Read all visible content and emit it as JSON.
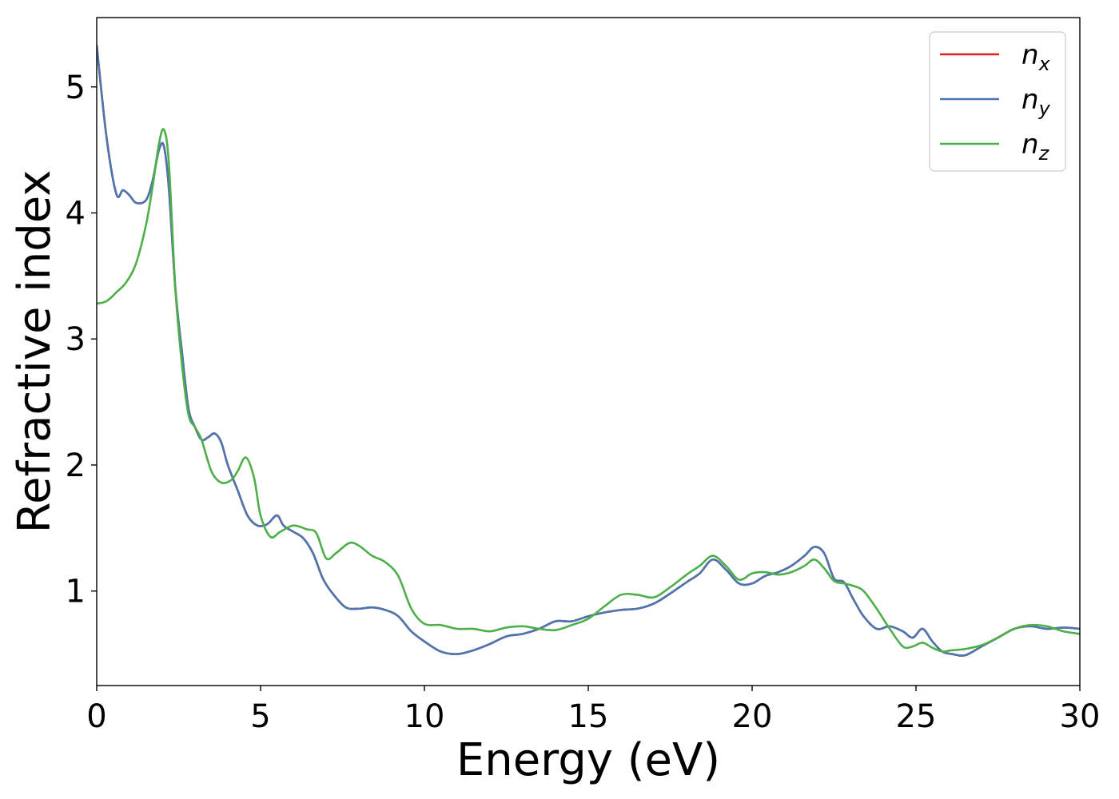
{
  "chart_data": {
    "type": "line",
    "xlabel": "Energy (eV)",
    "ylabel": "Refractive index",
    "xlim": [
      0,
      30
    ],
    "ylim": [
      0.25,
      5.55
    ],
    "xticks": [
      0,
      5,
      10,
      15,
      20,
      25,
      30
    ],
    "yticks": [
      1,
      2,
      3,
      4,
      5
    ],
    "grid": false,
    "legend_position": "top-right",
    "series": [
      {
        "name": "n_x",
        "legend_base": "n",
        "legend_sub": "x",
        "color": "#e41a1c",
        "x": [
          0,
          0.3,
          0.6,
          0.8,
          1.0,
          1.2,
          1.5,
          1.7,
          1.9,
          2.05,
          2.2,
          2.4,
          2.6,
          2.8,
          3.0,
          3.2,
          3.4,
          3.6,
          3.8,
          4.0,
          4.3,
          4.6,
          4.9,
          5.2,
          5.5,
          5.7,
          6.0,
          6.3,
          6.6,
          6.9,
          7.2,
          7.6,
          8.0,
          8.4,
          8.8,
          9.2,
          9.6,
          10.0,
          10.5,
          11.0,
          11.5,
          12.0,
          12.5,
          13.0,
          13.5,
          14.0,
          14.5,
          15.0,
          15.5,
          16.0,
          16.5,
          17.0,
          17.5,
          18.0,
          18.4,
          18.8,
          19.2,
          19.6,
          20.0,
          20.4,
          20.8,
          21.2,
          21.6,
          21.9,
          22.2,
          22.5,
          22.8,
          23.1,
          23.4,
          23.8,
          24.2,
          24.6,
          24.9,
          25.2,
          25.5,
          25.8,
          26.1,
          26.5,
          27.0,
          27.5,
          28.0,
          28.5,
          29.0,
          29.5,
          30.0
        ],
        "y": [
          5.33,
          4.6,
          4.15,
          4.18,
          4.14,
          4.08,
          4.1,
          4.25,
          4.5,
          4.53,
          4.2,
          3.4,
          2.9,
          2.45,
          2.3,
          2.2,
          2.22,
          2.25,
          2.18,
          2.0,
          1.8,
          1.6,
          1.52,
          1.53,
          1.6,
          1.52,
          1.47,
          1.42,
          1.3,
          1.1,
          0.98,
          0.87,
          0.86,
          0.87,
          0.85,
          0.8,
          0.68,
          0.6,
          0.52,
          0.5,
          0.53,
          0.58,
          0.64,
          0.66,
          0.7,
          0.76,
          0.76,
          0.8,
          0.83,
          0.85,
          0.86,
          0.9,
          0.98,
          1.07,
          1.14,
          1.25,
          1.17,
          1.06,
          1.06,
          1.12,
          1.15,
          1.2,
          1.28,
          1.35,
          1.3,
          1.1,
          1.07,
          0.93,
          0.8,
          0.7,
          0.72,
          0.68,
          0.63,
          0.7,
          0.6,
          0.52,
          0.5,
          0.49,
          0.56,
          0.63,
          0.7,
          0.72,
          0.7,
          0.71,
          0.7
        ]
      },
      {
        "name": "n_y",
        "legend_base": "n",
        "legend_sub": "y",
        "color": "#4a77b0",
        "x": [
          0,
          0.3,
          0.6,
          0.8,
          1.0,
          1.2,
          1.5,
          1.7,
          1.9,
          2.05,
          2.2,
          2.4,
          2.6,
          2.8,
          3.0,
          3.2,
          3.4,
          3.6,
          3.8,
          4.0,
          4.3,
          4.6,
          4.9,
          5.2,
          5.5,
          5.7,
          6.0,
          6.3,
          6.6,
          6.9,
          7.2,
          7.6,
          8.0,
          8.4,
          8.8,
          9.2,
          9.6,
          10.0,
          10.5,
          11.0,
          11.5,
          12.0,
          12.5,
          13.0,
          13.5,
          14.0,
          14.5,
          15.0,
          15.5,
          16.0,
          16.5,
          17.0,
          17.5,
          18.0,
          18.4,
          18.8,
          19.2,
          19.6,
          20.0,
          20.4,
          20.8,
          21.2,
          21.6,
          21.9,
          22.2,
          22.5,
          22.8,
          23.1,
          23.4,
          23.8,
          24.2,
          24.6,
          24.9,
          25.2,
          25.5,
          25.8,
          26.1,
          26.5,
          27.0,
          27.5,
          28.0,
          28.5,
          29.0,
          29.5,
          30.0
        ],
        "y": [
          5.33,
          4.6,
          4.15,
          4.18,
          4.14,
          4.08,
          4.1,
          4.25,
          4.5,
          4.53,
          4.2,
          3.4,
          2.9,
          2.45,
          2.3,
          2.2,
          2.22,
          2.25,
          2.18,
          2.0,
          1.8,
          1.6,
          1.52,
          1.53,
          1.6,
          1.52,
          1.47,
          1.42,
          1.3,
          1.1,
          0.98,
          0.87,
          0.86,
          0.87,
          0.85,
          0.8,
          0.68,
          0.6,
          0.52,
          0.5,
          0.53,
          0.58,
          0.64,
          0.66,
          0.7,
          0.76,
          0.76,
          0.8,
          0.83,
          0.85,
          0.86,
          0.9,
          0.98,
          1.07,
          1.14,
          1.25,
          1.17,
          1.06,
          1.06,
          1.12,
          1.15,
          1.2,
          1.28,
          1.35,
          1.3,
          1.1,
          1.07,
          0.93,
          0.8,
          0.7,
          0.72,
          0.68,
          0.63,
          0.7,
          0.6,
          0.52,
          0.5,
          0.49,
          0.56,
          0.63,
          0.7,
          0.72,
          0.7,
          0.71,
          0.7
        ]
      },
      {
        "name": "n_z",
        "legend_base": "n",
        "legend_sub": "z",
        "color": "#4daf4a",
        "x": [
          0,
          0.3,
          0.6,
          0.9,
          1.2,
          1.5,
          1.7,
          1.9,
          2.05,
          2.2,
          2.4,
          2.6,
          2.8,
          3.0,
          3.2,
          3.5,
          3.8,
          4.1,
          4.3,
          4.55,
          4.8,
          5.0,
          5.3,
          5.6,
          6.0,
          6.4,
          6.7,
          7.0,
          7.3,
          7.7,
          8.0,
          8.4,
          8.8,
          9.2,
          9.6,
          10.0,
          10.5,
          11.0,
          11.5,
          12.0,
          12.5,
          13.0,
          13.5,
          14.0,
          14.5,
          15.0,
          15.5,
          16.0,
          16.5,
          17.0,
          17.5,
          18.0,
          18.4,
          18.8,
          19.2,
          19.6,
          20.0,
          20.4,
          20.8,
          21.2,
          21.6,
          21.9,
          22.2,
          22.5,
          22.8,
          23.1,
          23.4,
          23.8,
          24.2,
          24.6,
          24.9,
          25.2,
          25.5,
          25.8,
          26.1,
          26.5,
          27.0,
          27.5,
          28.0,
          28.5,
          29.0,
          29.5,
          30.0
        ],
        "y": [
          3.28,
          3.3,
          3.37,
          3.45,
          3.6,
          3.9,
          4.2,
          4.55,
          4.66,
          4.4,
          3.4,
          2.8,
          2.4,
          2.3,
          2.2,
          1.95,
          1.86,
          1.88,
          1.95,
          2.06,
          1.9,
          1.6,
          1.43,
          1.47,
          1.52,
          1.49,
          1.46,
          1.26,
          1.3,
          1.38,
          1.36,
          1.28,
          1.23,
          1.12,
          0.86,
          0.74,
          0.73,
          0.7,
          0.7,
          0.68,
          0.71,
          0.72,
          0.7,
          0.69,
          0.73,
          0.78,
          0.88,
          0.97,
          0.97,
          0.95,
          1.03,
          1.13,
          1.2,
          1.28,
          1.2,
          1.09,
          1.14,
          1.15,
          1.13,
          1.15,
          1.2,
          1.25,
          1.18,
          1.08,
          1.06,
          1.04,
          1.0,
          0.86,
          0.7,
          0.56,
          0.56,
          0.59,
          0.55,
          0.52,
          0.53,
          0.54,
          0.57,
          0.63,
          0.7,
          0.73,
          0.72,
          0.68,
          0.66
        ]
      }
    ]
  }
}
